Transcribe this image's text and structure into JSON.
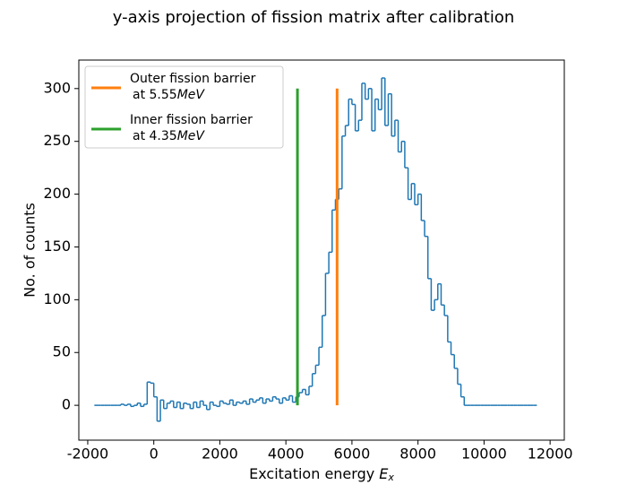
{
  "chart_data": {
    "type": "histogram",
    "title": "y-axis projection of fission matrix after calibration",
    "xlabel": "Excitation energy ",
    "xlabel_symbol": "E",
    "xlabel_subscript": "x",
    "ylabel": "No. of counts",
    "color": "#1f77b4",
    "bins": [
      -1800,
      -1700,
      -1600,
      -1500,
      -1400,
      -1300,
      -1200,
      -1100,
      -1000,
      -900,
      -800,
      -700,
      -600,
      -500,
      -400,
      -300,
      -200,
      -100,
      0,
      100,
      200,
      300,
      400,
      500,
      600,
      700,
      800,
      900,
      1000,
      1100,
      1200,
      1300,
      1400,
      1500,
      1600,
      1700,
      1800,
      1900,
      2000,
      2100,
      2200,
      2300,
      2400,
      2500,
      2600,
      2700,
      2800,
      2900,
      3000,
      3100,
      3200,
      3300,
      3400,
      3500,
      3600,
      3700,
      3800,
      3900,
      4000,
      4100,
      4200,
      4300,
      4400,
      4500,
      4600,
      4700,
      4800,
      4900,
      5000,
      5100,
      5200,
      5300,
      5400,
      5500,
      5600,
      5700,
      5800,
      5900,
      6000,
      6100,
      6200,
      6300,
      6400,
      6500,
      6600,
      6700,
      6800,
      6900,
      7000,
      7100,
      7200,
      7300,
      7400,
      7500,
      7600,
      7700,
      7800,
      7900,
      8000,
      8100,
      8200,
      8300,
      8400,
      8500,
      8600,
      8700,
      8800,
      8900,
      9000,
      9100,
      9200,
      9300,
      9400,
      9500,
      9600,
      9700,
      9800,
      9900,
      10000,
      10100,
      10200,
      10300,
      10400,
      10500,
      10600,
      10700,
      10800,
      10900,
      11000,
      11100,
      11200,
      11300,
      11400,
      11500,
      11600
    ],
    "values": [
      0,
      0,
      0,
      0,
      0,
      0,
      0,
      0,
      1,
      0,
      1,
      -1,
      0,
      2,
      -1,
      1,
      22,
      21,
      8,
      -15,
      5,
      -3,
      2,
      4,
      -2,
      3,
      -3,
      2,
      1,
      -3,
      3,
      -2,
      4,
      0,
      -4,
      3,
      0,
      -1,
      4,
      2,
      1,
      5,
      0,
      3,
      2,
      4,
      1,
      6,
      3,
      5,
      7,
      2,
      6,
      4,
      8,
      6,
      2,
      7,
      5,
      9,
      3,
      8,
      12,
      15,
      10,
      18,
      30,
      38,
      55,
      85,
      125,
      145,
      185,
      195,
      205,
      255,
      265,
      290,
      285,
      260,
      270,
      305,
      290,
      300,
      260,
      290,
      280,
      310,
      265,
      295,
      255,
      270,
      240,
      250,
      225,
      195,
      210,
      190,
      200,
      175,
      160,
      120,
      90,
      100,
      115,
      95,
      85,
      60,
      48,
      35,
      20,
      8,
      0,
      0,
      0,
      0,
      0,
      0,
      0,
      0,
      0,
      0,
      0,
      0,
      0,
      0,
      0,
      0,
      0,
      0,
      0,
      0,
      0,
      0
    ],
    "vlines": [
      {
        "name": [
          "Outer fission barrier",
          "at 5.55",
          "MeV"
        ],
        "color": "#ff7f0e",
        "x": 5550,
        "ymin": 0,
        "ymax": 300
      },
      {
        "name": [
          "Inner fission barrier",
          "at 4.35",
          "MeV"
        ],
        "color": "#2ca02c",
        "x": 4350,
        "ymin": 0,
        "ymax": 300
      }
    ],
    "legend": "upper left",
    "xlim": [
      -2270,
      12430
    ],
    "ylim": [
      -33,
      327
    ],
    "xticks": [
      -2000,
      0,
      2000,
      4000,
      6000,
      8000,
      10000,
      12000
    ],
    "yticks": [
      0,
      50,
      100,
      150,
      200,
      250,
      300
    ]
  }
}
